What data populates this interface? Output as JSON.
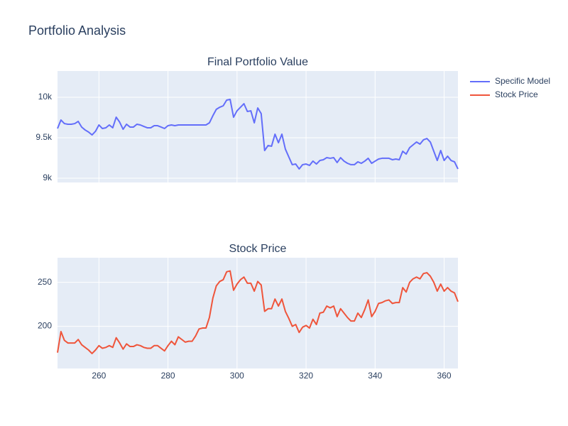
{
  "title": "Portfolio Analysis",
  "legend": "top-right",
  "chart_data": [
    {
      "type": "line",
      "title": "Final Portfolio Value",
      "x": [
        248,
        249,
        250,
        251,
        252,
        253,
        254,
        255,
        256,
        257,
        258,
        259,
        260,
        261,
        262,
        263,
        264,
        265,
        266,
        267,
        268,
        269,
        270,
        271,
        272,
        273,
        274,
        275,
        276,
        277,
        278,
        279,
        280,
        281,
        282,
        283,
        284,
        285,
        286,
        287,
        288,
        289,
        290,
        291,
        292,
        293,
        294,
        295,
        296,
        297,
        298,
        299,
        300,
        301,
        302,
        303,
        304,
        305,
        306,
        307,
        308,
        309,
        310,
        311,
        312,
        313,
        314,
        315,
        316,
        317,
        318,
        319,
        320,
        321,
        322,
        323,
        324,
        325,
        326,
        327,
        328,
        329,
        330,
        331,
        332,
        333,
        334,
        335,
        336,
        337,
        338,
        339,
        340,
        341,
        342,
        343,
        344,
        345,
        346,
        347,
        348,
        349,
        350,
        351,
        352,
        353,
        354,
        355,
        356,
        357,
        358,
        359,
        360,
        361,
        362,
        363,
        364
      ],
      "series": [
        {
          "name": "Specific Model",
          "color": "#636efa",
          "values": [
            9614,
            9719,
            9675,
            9667,
            9667,
            9675,
            9702,
            9632,
            9596,
            9570,
            9535,
            9579,
            9658,
            9614,
            9623,
            9658,
            9623,
            9754,
            9693,
            9605,
            9667,
            9632,
            9632,
            9667,
            9658,
            9640,
            9623,
            9623,
            9649,
            9649,
            9632,
            9614,
            9649,
            9658,
            9649,
            9658,
            9658,
            9658,
            9658,
            9658,
            9658,
            9658,
            9658,
            9658,
            9684,
            9772,
            9851,
            9877,
            9895,
            9965,
            9974,
            9754,
            9833,
            9877,
            9921,
            9825,
            9833,
            9684,
            9868,
            9798,
            9342,
            9404,
            9395,
            9544,
            9439,
            9544,
            9360,
            9263,
            9167,
            9175,
            9114,
            9167,
            9175,
            9158,
            9211,
            9175,
            9219,
            9228,
            9254,
            9246,
            9254,
            9193,
            9254,
            9211,
            9184,
            9167,
            9167,
            9202,
            9184,
            9211,
            9246,
            9184,
            9211,
            9237,
            9246,
            9246,
            9246,
            9228,
            9237,
            9228,
            9333,
            9298,
            9377,
            9412,
            9447,
            9421,
            9474,
            9491,
            9447,
            9333,
            9219,
            9342,
            9219,
            9272,
            9219,
            9202,
            9114
          ]
        }
      ],
      "xlim": [
        248,
        364
      ],
      "xticks": [
        260,
        280,
        300,
        320,
        340,
        360
      ],
      "show_xtick_labels": false,
      "ylim": [
        8947,
        10325
      ],
      "yticks": [
        {
          "value": 9000,
          "label": "9k"
        },
        {
          "value": 9500,
          "label": "9.5k"
        },
        {
          "value": 10000,
          "label": "10k"
        }
      ],
      "grid": true
    },
    {
      "type": "line",
      "title": "Stock Price",
      "x": [
        248,
        249,
        250,
        251,
        252,
        253,
        254,
        255,
        256,
        257,
        258,
        259,
        260,
        261,
        262,
        263,
        264,
        265,
        266,
        267,
        268,
        269,
        270,
        271,
        272,
        273,
        274,
        275,
        276,
        277,
        278,
        279,
        280,
        281,
        282,
        283,
        284,
        285,
        286,
        287,
        288,
        289,
        290,
        291,
        292,
        293,
        294,
        295,
        296,
        297,
        298,
        299,
        300,
        301,
        302,
        303,
        304,
        305,
        306,
        307,
        308,
        309,
        310,
        311,
        312,
        313,
        314,
        315,
        316,
        317,
        318,
        319,
        320,
        321,
        322,
        323,
        324,
        325,
        326,
        327,
        328,
        329,
        330,
        331,
        332,
        333,
        334,
        335,
        336,
        337,
        338,
        339,
        340,
        341,
        342,
        343,
        344,
        345,
        346,
        347,
        348,
        349,
        350,
        351,
        352,
        353,
        354,
        355,
        356,
        357,
        358,
        359,
        360,
        361,
        362,
        363,
        364
      ],
      "series": [
        {
          "name": "Stock Price",
          "color": "#ef553b",
          "values": [
            170,
            194,
            184,
            181,
            181,
            181,
            185,
            179,
            176,
            173,
            169,
            173,
            178,
            175,
            176,
            178,
            176,
            187,
            181,
            174,
            180,
            177,
            177,
            179,
            178,
            176,
            175,
            175,
            178,
            178,
            175,
            172,
            178,
            183,
            179,
            188,
            185,
            182,
            183,
            183,
            189,
            197,
            198,
            198,
            210,
            232,
            246,
            251,
            253,
            262,
            263,
            241,
            248,
            253,
            256,
            249,
            249,
            240,
            251,
            247,
            217,
            220,
            220,
            231,
            223,
            231,
            217,
            209,
            200,
            202,
            193,
            199,
            201,
            198,
            208,
            202,
            215,
            216,
            223,
            221,
            223,
            211,
            220,
            215,
            210,
            206,
            206,
            215,
            210,
            219,
            230,
            211,
            217,
            226,
            227,
            229,
            230,
            226,
            227,
            227,
            244,
            239,
            250,
            254,
            256,
            254,
            260,
            261,
            257,
            250,
            240,
            248,
            240,
            244,
            240,
            238,
            228
          ]
        }
      ],
      "xlim": [
        248,
        364
      ],
      "xticks": [
        260,
        280,
        300,
        320,
        340,
        360
      ],
      "show_xtick_labels": true,
      "ylim": [
        152,
        278
      ],
      "yticks": [
        200,
        250
      ],
      "grid": true
    }
  ]
}
